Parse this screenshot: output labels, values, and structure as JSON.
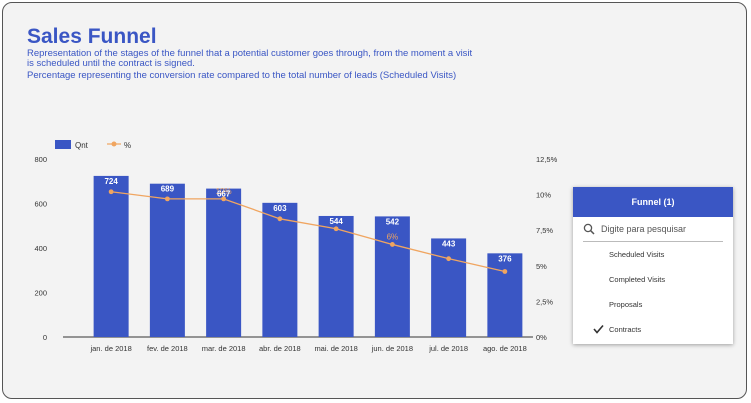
{
  "title": "Sales Funnel",
  "description": [
    "Representation of the stages of the funnel that a potential customer goes through, from the moment a visit",
    "is scheduled until the contract is signed.",
    "Percentage representing the conversion rate compared to the total number of leads (Scheduled Visits)"
  ],
  "colors": {
    "bar": "#3a56c4",
    "line": "#f0a560",
    "title": "#3a56c4"
  },
  "chart_data": {
    "type": "bar",
    "categories": [
      "jan. de 2018",
      "fev. de 2018",
      "mar. de 2018",
      "abr. de 2018",
      "mai. de 2018",
      "jun. de 2018",
      "jul. de 2018",
      "ago. de 2018"
    ],
    "series": [
      {
        "name": "Qnt",
        "type": "bar",
        "axis": "left",
        "values": [
          724,
          689,
          667,
          603,
          544,
          542,
          443,
          376
        ]
      },
      {
        "name": "%",
        "type": "line",
        "axis": "right",
        "values": [
          10.2,
          9.7,
          9.7,
          8.3,
          7.6,
          6.5,
          5.5,
          4.6
        ]
      }
    ],
    "visible_line_labels": [
      {
        "index": 2,
        "text": "10%"
      },
      {
        "index": 5,
        "text": "6%"
      }
    ],
    "y_left": {
      "ticks": [
        "800",
        "600",
        "400",
        "200",
        "0"
      ],
      "range": [
        0,
        800
      ]
    },
    "y_right": {
      "ticks": [
        "12,5%",
        "10%",
        "7,5%",
        "5%",
        "2,5%",
        "0%"
      ],
      "range": [
        0,
        12.5
      ]
    },
    "legend_position": "top-left",
    "grid": false
  },
  "filter": {
    "header": "Funnel (1)",
    "search_placeholder": "Digite para pesquisar",
    "options": [
      {
        "label": "Scheduled Visits",
        "checked": false
      },
      {
        "label": "Completed Visits",
        "checked": false
      },
      {
        "label": "Proposals",
        "checked": false
      },
      {
        "label": "Contracts",
        "checked": true
      }
    ],
    "icons": {
      "search": "search-icon",
      "check": "checkmark-icon"
    }
  }
}
